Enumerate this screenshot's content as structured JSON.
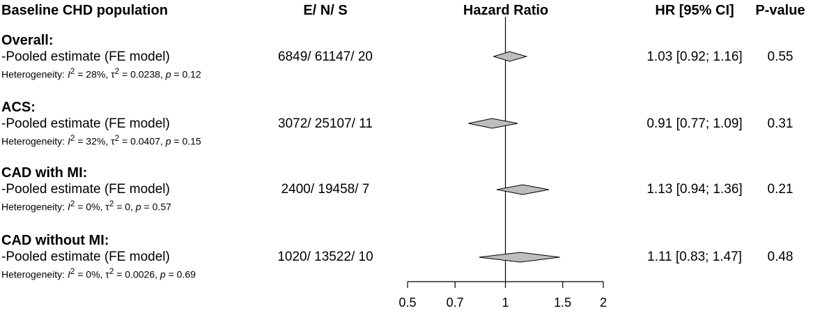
{
  "headers": {
    "population": "Baseline CHD population",
    "counts": "E/ N/ S",
    "plot": "Hazard Ratio",
    "hr": "HR [95% CI]",
    "pvalue": "P-value"
  },
  "rows": [
    {
      "group": "Overall:",
      "estimate_label": "-Pooled estimate (FE model)",
      "het_prefix": "Heterogeneity: ",
      "het_i2": "28%",
      "het_tau2": "0.0238",
      "het_p": "0.12",
      "counts": "6849/ 61147/ 20",
      "hr_text": "1.03 [0.92;  1.16]",
      "p_value": "0.55"
    },
    {
      "group": "ACS:",
      "estimate_label": "-Pooled estimate (FE model)",
      "het_prefix": "Heterogeneity: ",
      "het_i2": "32%",
      "het_tau2": "0.0407",
      "het_p": "0.15",
      "counts": "3072/ 25107/ 11",
      "hr_text": "0.91 [0.77;  1.09]",
      "p_value": "0.31"
    },
    {
      "group": "CAD with MI:",
      "estimate_label": "-Pooled estimate (FE model)",
      "het_prefix": "Heterogeneity: ",
      "het_i2": "0%",
      "het_tau2": "0",
      "het_p": "0.57",
      "counts": "2400/ 19458/ 7",
      "hr_text": "1.13 [0.94;  1.36]",
      "p_value": "0.21"
    },
    {
      "group": "CAD without MI:",
      "estimate_label": "-Pooled estimate (FE model)",
      "het_prefix": "Heterogeneity: ",
      "het_i2": "0%",
      "het_tau2": "0.0026",
      "het_p": "0.69",
      "counts": "1020/ 13522/ 10",
      "hr_text": "1.11 [0.83;  1.47]",
      "p_value": "0.48"
    }
  ],
  "chart_data": {
    "type": "forest",
    "xlabel": "Hazard Ratio",
    "x_scale": "log",
    "xlim": [
      0.5,
      2
    ],
    "reference_line": 1,
    "ticks": [
      0.5,
      0.7,
      1,
      1.5,
      2
    ],
    "tick_labels": [
      "0.5",
      "0.7",
      "1",
      "1.5",
      "2"
    ],
    "diamond_fill": "#bebebe",
    "series": [
      {
        "category": "Overall",
        "hr": 1.03,
        "lower": 0.92,
        "upper": 1.16
      },
      {
        "category": "ACS",
        "hr": 0.91,
        "lower": 0.77,
        "upper": 1.09
      },
      {
        "category": "CAD with MI",
        "hr": 1.13,
        "lower": 0.94,
        "upper": 1.36
      },
      {
        "category": "CAD without MI",
        "hr": 1.11,
        "lower": 0.83,
        "upper": 1.47
      }
    ]
  }
}
